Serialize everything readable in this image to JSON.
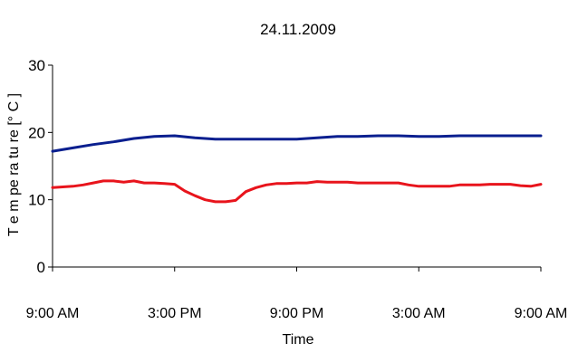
{
  "chart_data": {
    "type": "line",
    "title": "24.11.2009",
    "xlabel": "Time",
    "ylabel": "T e m pe ra tu re [° C ]",
    "ylim": [
      0,
      30
    ],
    "yticks": [
      0,
      10,
      20,
      30
    ],
    "xlim": [
      0,
      24
    ],
    "xtick_values": [
      0,
      6,
      12,
      18,
      24
    ],
    "xtick_labels": [
      "9:00 AM",
      "3:00 PM",
      "9:00 PM",
      "3:00 AM",
      "9:00 AM"
    ],
    "grid": false,
    "legend": "none",
    "series": [
      {
        "color": "#0a1f8f",
        "x": [
          0,
          1,
          2,
          3,
          4,
          5,
          6,
          7,
          8,
          9,
          10,
          11,
          12,
          13,
          14,
          15,
          16,
          17,
          18,
          19,
          20,
          21,
          22,
          23,
          24
        ],
        "values": [
          17.2,
          17.7,
          18.2,
          18.6,
          19.1,
          19.4,
          19.5,
          19.2,
          19.0,
          19.0,
          19.0,
          19.0,
          19.0,
          19.2,
          19.4,
          19.4,
          19.5,
          19.5,
          19.4,
          19.4,
          19.5,
          19.5,
          19.5,
          19.5,
          19.5
        ]
      },
      {
        "color": "#e8141c",
        "x": [
          0,
          0.5,
          1,
          1.5,
          2,
          2.5,
          3,
          3.5,
          4,
          4.5,
          5,
          5.5,
          6,
          6.5,
          7,
          7.5,
          8,
          8.5,
          9,
          9.5,
          10,
          10.5,
          11,
          11.5,
          12,
          12.5,
          13,
          13.5,
          14,
          14.5,
          15,
          15.5,
          16,
          16.5,
          17,
          17.5,
          18,
          18.5,
          19,
          19.5,
          20,
          20.5,
          21,
          21.5,
          22,
          22.5,
          23,
          23.5,
          24
        ],
        "values": [
          11.8,
          11.9,
          12.0,
          12.2,
          12.5,
          12.8,
          12.8,
          12.6,
          12.8,
          12.5,
          12.5,
          12.4,
          12.3,
          11.3,
          10.6,
          10.0,
          9.7,
          9.7,
          9.9,
          11.2,
          11.8,
          12.2,
          12.4,
          12.4,
          12.5,
          12.5,
          12.7,
          12.6,
          12.6,
          12.6,
          12.5,
          12.5,
          12.5,
          12.5,
          12.5,
          12.2,
          12.0,
          12.0,
          12.0,
          12.0,
          12.2,
          12.2,
          12.2,
          12.3,
          12.3,
          12.3,
          12.1,
          12.0,
          12.3
        ]
      }
    ]
  }
}
